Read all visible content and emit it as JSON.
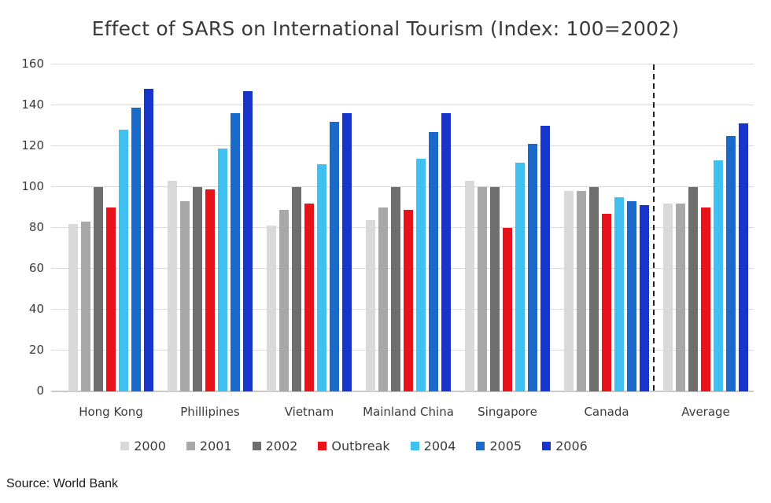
{
  "title": "Effect of SARS on International Tourism (Index: 100=2002)",
  "source": "Source: World Bank",
  "chart_data": {
    "type": "bar",
    "title": "Effect of SARS on International Tourism (Index: 100=2002)",
    "categories": [
      "Hong Kong",
      "Phillipines",
      "Vietnam",
      "Mainland China",
      "Singapore",
      "Canada",
      "Average"
    ],
    "series": [
      {
        "name": "2000",
        "color": "#d9d9d9",
        "values": [
          82,
          103,
          81,
          84,
          103,
          98,
          92
        ]
      },
      {
        "name": "2001",
        "color": "#a8a8a8",
        "values": [
          83,
          93,
          89,
          90,
          100,
          98,
          92
        ]
      },
      {
        "name": "2002",
        "color": "#6e6e6e",
        "values": [
          100,
          100,
          100,
          100,
          100,
          100,
          100
        ]
      },
      {
        "name": "Outbreak",
        "color": "#e8121a",
        "values": [
          90,
          99,
          92,
          89,
          80,
          87,
          90
        ]
      },
      {
        "name": "2004",
        "color": "#3fc0ee",
        "values": [
          128,
          119,
          111,
          114,
          112,
          95,
          113
        ]
      },
      {
        "name": "2005",
        "color": "#1b6ac9",
        "values": [
          139,
          136,
          132,
          127,
          121,
          93,
          125
        ]
      },
      {
        "name": "2006",
        "color": "#1734cb",
        "values": [
          148,
          147,
          136,
          136,
          130,
          91,
          131
        ]
      }
    ],
    "xlabel": "",
    "ylabel": "",
    "ylim": [
      0,
      160
    ],
    "yticks": [
      0,
      20,
      40,
      60,
      80,
      100,
      120,
      140,
      160
    ],
    "grid": true,
    "legend_position": "bottom",
    "separator_after_category": "Canada"
  }
}
